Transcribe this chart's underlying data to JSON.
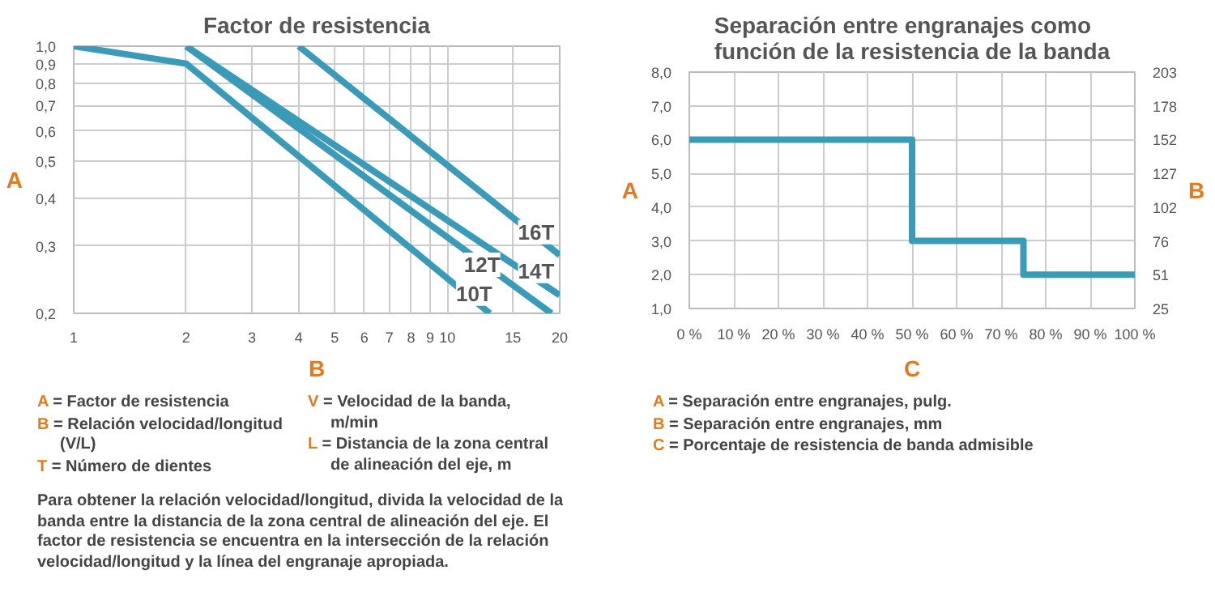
{
  "chart_data": [
    {
      "type": "line",
      "title": "Factor de resistencia",
      "xlabel": "B",
      "ylabel": "A",
      "log": "xy",
      "grid": true,
      "line_style": "solid",
      "marker": "none",
      "xlim": [
        1,
        20
      ],
      "ylim": [
        0.2,
        1.0
      ],
      "xticks": [
        1,
        2,
        3,
        4,
        5,
        6,
        7,
        8,
        9,
        10,
        15,
        20
      ],
      "yticks": [
        {
          "value": 0.2,
          "label": "0,2"
        },
        {
          "value": 0.3,
          "label": "0,3"
        },
        {
          "value": 0.4,
          "label": "0,4"
        },
        {
          "value": 0.5,
          "label": "0,5"
        },
        {
          "value": 0.6,
          "label": "0,6"
        },
        {
          "value": 0.7,
          "label": "0,7"
        },
        {
          "value": 0.8,
          "label": "0,8"
        },
        {
          "value": 0.9,
          "label": "0,9"
        },
        {
          "value": 1.0,
          "label": "1,0"
        }
      ],
      "series": [
        {
          "color": "#3a9bb8",
          "x": [
            1,
            2,
            13
          ],
          "values": [
            1.0,
            0.9,
            0.2
          ]
        },
        {
          "color": "#3a9bb8",
          "x": [
            2,
            19
          ],
          "values": [
            1.0,
            0.2
          ]
        },
        {
          "color": "#3a9bb8",
          "x": [
            2,
            20
          ],
          "values": [
            1.0,
            0.223
          ]
        },
        {
          "color": "#3a9bb8",
          "x": [
            4,
            20
          ],
          "values": [
            1.0,
            0.284
          ]
        }
      ],
      "annotations": [
        {
          "text": "10T",
          "x": 11.8,
          "y": 0.225
        },
        {
          "text": "12T",
          "x": 12.4,
          "y": 0.268
        },
        {
          "text": "14T",
          "x": 17.3,
          "y": 0.258
        },
        {
          "text": "16T",
          "x": 17.3,
          "y": 0.326
        },
        "A = Factor de resistencia",
        "B = Relación velocidad/longitud (V/L)",
        "T = Número de dientes",
        "V = Velocidad de la banda, m/min",
        "L = Distancia de la zona central de alineación del eje, m",
        "Para obtener la relación velocidad/longitud, divida la velocidad de la banda entre la distancia de la zona central de alineación del eje. El factor de resistencia se encuentra en la intersección de la relación velocidad/longitud y la línea del engranaje apropiada."
      ]
    },
    {
      "type": "step",
      "title": "Separación entre engranajes como función de la resistencia de la banda",
      "xlabel": "C",
      "ylabel": "A",
      "y2label": "B",
      "grid": true,
      "line_style": "solid",
      "marker": "none",
      "xlim": [
        0,
        100
      ],
      "ylim": [
        1.0,
        8.0
      ],
      "y2lim": [
        25.4,
        203.2
      ],
      "xticks": [
        {
          "value": 0,
          "label": "0 %"
        },
        {
          "value": 10,
          "label": "10 %"
        },
        {
          "value": 20,
          "label": "20 %"
        },
        {
          "value": 30,
          "label": "30 %"
        },
        {
          "value": 40,
          "label": "40 %"
        },
        {
          "value": 50,
          "label": "50 %"
        },
        {
          "value": 60,
          "label": "60 %"
        },
        {
          "value": 70,
          "label": "70 %"
        },
        {
          "value": 80,
          "label": "80 %"
        },
        {
          "value": 90,
          "label": "90 %"
        },
        {
          "value": 100,
          "label": "100 %"
        }
      ],
      "yticks": [
        {
          "value": 1,
          "label": "1,0"
        },
        {
          "value": 2,
          "label": "2,0"
        },
        {
          "value": 3,
          "label": "3,0"
        },
        {
          "value": 4,
          "label": "4,0"
        },
        {
          "value": 5,
          "label": "5,0"
        },
        {
          "value": 6,
          "label": "6,0"
        },
        {
          "value": 7,
          "label": "7,0"
        },
        {
          "value": 8,
          "label": "8,0"
        }
      ],
      "y2ticks": [
        {
          "value": 25.4,
          "label": "25"
        },
        {
          "value": 50.8,
          "label": "51"
        },
        {
          "value": 76.2,
          "label": "76"
        },
        {
          "value": 101.6,
          "label": "102"
        },
        {
          "value": 127,
          "label": "127"
        },
        {
          "value": 152.4,
          "label": "152"
        },
        {
          "value": 177.8,
          "label": "178"
        },
        {
          "value": 203.2,
          "label": "203"
        }
      ],
      "series": [
        {
          "color": "#3a9bb8",
          "x": [
            0,
            50,
            75,
            100
          ],
          "values": [
            6,
            3,
            2,
            2
          ]
        }
      ],
      "annotations": [
        "A = Separación entre engranajes, pulg.",
        "B = Separación entre engranajes, mm",
        "C = Porcentaje de resistencia de banda admisible"
      ]
    }
  ]
}
